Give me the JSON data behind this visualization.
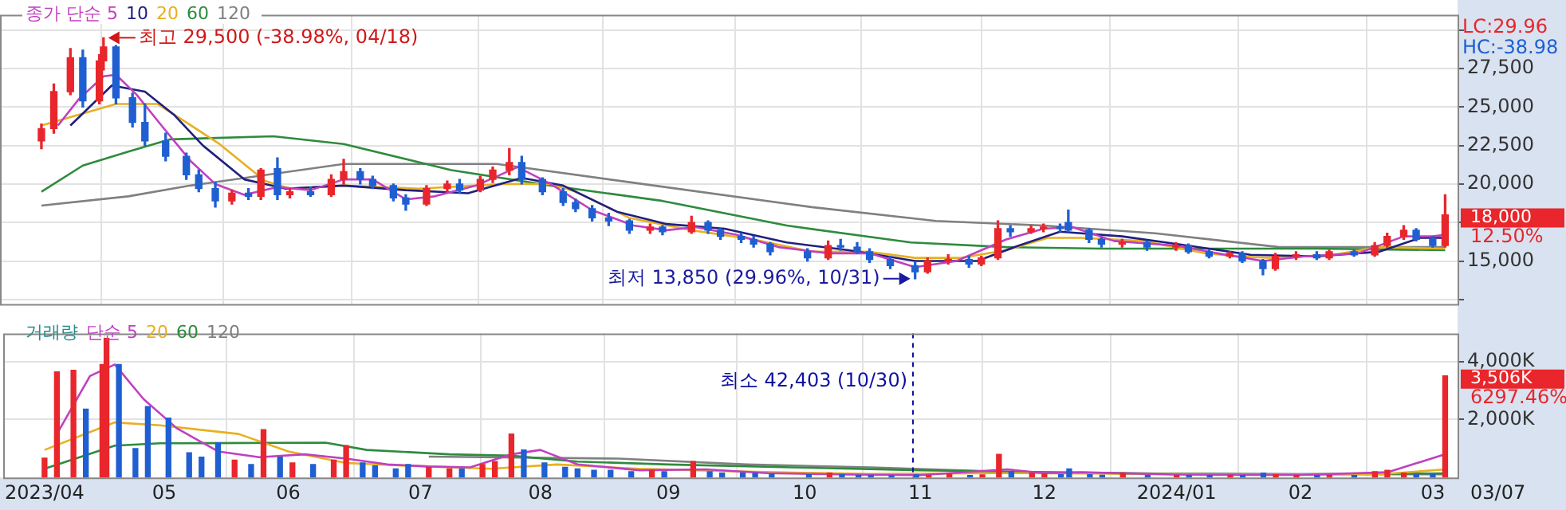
{
  "chart_data": [
    {
      "type": "candlestick",
      "tick_labels": "y",
      "grid": true,
      "x": [
        "2023-04-03",
        "2023-04-06",
        "2023-04-10",
        "2023-04-13",
        "2023-04-17",
        "2023-04-18",
        "2023-04-21",
        "2023-04-25",
        "2023-04-28",
        "2023-05-03",
        "2023-05-08",
        "2023-05-11",
        "2023-05-15",
        "2023-05-19",
        "2023-05-23",
        "2023-05-26",
        "2023-05-30",
        "2023-06-02",
        "2023-06-07",
        "2023-06-12",
        "2023-06-15",
        "2023-06-19",
        "2023-06-22",
        "2023-06-27",
        "2023-06-30",
        "2023-07-05",
        "2023-07-10",
        "2023-07-13",
        "2023-07-18",
        "2023-07-21",
        "2023-07-25",
        "2023-07-28",
        "2023-08-02",
        "2023-08-07",
        "2023-08-10",
        "2023-08-14",
        "2023-08-18",
        "2023-08-23",
        "2023-08-28",
        "2023-08-31",
        "2023-09-07",
        "2023-09-11",
        "2023-09-14",
        "2023-09-19",
        "2023-09-22",
        "2023-09-26",
        "2023-10-05",
        "2023-10-10",
        "2023-10-13",
        "2023-10-17",
        "2023-10-20",
        "2023-10-25",
        "2023-10-31",
        "2023-11-03",
        "2023-11-08",
        "2023-11-13",
        "2023-11-16",
        "2023-11-20",
        "2023-11-23",
        "2023-11-28",
        "2023-12-01",
        "2023-12-05",
        "2023-12-07",
        "2023-12-12",
        "2023-12-15",
        "2023-12-20",
        "2023-12-26",
        "2024-01-02",
        "2024-01-05",
        "2024-01-10",
        "2024-01-15",
        "2024-01-18",
        "2024-01-23",
        "2024-01-26",
        "2024-01-31",
        "2024-02-05",
        "2024-02-08",
        "2024-02-14",
        "2024-02-19",
        "2024-02-22",
        "2024-02-26",
        "2024-02-29",
        "2024-03-04",
        "2024-03-07"
      ],
      "ohlc": [
        [
          22800,
          23900,
          22300,
          23600
        ],
        [
          23600,
          26500,
          23300,
          26000
        ],
        [
          26000,
          28800,
          25800,
          28200
        ],
        [
          28200,
          28700,
          25000,
          25400
        ],
        [
          25400,
          28400,
          25200,
          28000
        ],
        [
          28000,
          29500,
          27400,
          28900
        ],
        [
          28900,
          29000,
          25200,
          25600
        ],
        [
          25600,
          25900,
          23700,
          24000
        ],
        [
          24000,
          25200,
          22500,
          22800
        ],
        [
          22800,
          23300,
          21500,
          21800
        ],
        [
          21800,
          22000,
          20300,
          20600
        ],
        [
          20600,
          20900,
          19500,
          19700
        ],
        [
          19700,
          20100,
          18500,
          18900
        ],
        [
          18900,
          19600,
          18700,
          19400
        ],
        [
          19400,
          19700,
          19000,
          19200
        ],
        [
          19200,
          21000,
          19000,
          20900
        ],
        [
          21000,
          21700,
          19000,
          19300
        ],
        [
          19300,
          19700,
          19100,
          19500
        ],
        [
          19500,
          19800,
          19200,
          19300
        ],
        [
          19300,
          20600,
          19200,
          20300
        ],
        [
          20300,
          21600,
          20000,
          20800
        ],
        [
          20800,
          21000,
          20000,
          20300
        ],
        [
          20300,
          20500,
          19700,
          19900
        ],
        [
          19900,
          20000,
          18900,
          19100
        ],
        [
          19100,
          19300,
          18300,
          18700
        ],
        [
          18700,
          19900,
          18600,
          19700
        ],
        [
          19700,
          20200,
          19500,
          20000
        ],
        [
          20000,
          20300,
          19400,
          19600
        ],
        [
          19600,
          20500,
          19500,
          20300
        ],
        [
          20300,
          21100,
          20100,
          20900
        ],
        [
          20900,
          22300,
          20600,
          21400
        ],
        [
          21400,
          21800,
          20000,
          20300
        ],
        [
          20300,
          20400,
          19300,
          19500
        ],
        [
          19500,
          19700,
          18600,
          18800
        ],
        [
          18800,
          19000,
          18200,
          18400
        ],
        [
          18400,
          18600,
          17600,
          17800
        ],
        [
          17800,
          18100,
          17300,
          17600
        ],
        [
          17600,
          17700,
          16800,
          17000
        ],
        [
          17000,
          17400,
          16800,
          17200
        ],
        [
          17200,
          17300,
          16700,
          16900
        ],
        [
          16900,
          17900,
          16800,
          17500
        ],
        [
          17500,
          17600,
          16800,
          17000
        ],
        [
          17000,
          17100,
          16400,
          16600
        ],
        [
          16600,
          16800,
          16200,
          16400
        ],
        [
          16400,
          16600,
          15900,
          16100
        ],
        [
          16100,
          16200,
          15400,
          15600
        ],
        [
          15600,
          15800,
          15000,
          15200
        ],
        [
          15200,
          16300,
          15100,
          16000
        ],
        [
          16000,
          16400,
          15700,
          15900
        ],
        [
          15900,
          16200,
          15500,
          15600
        ],
        [
          15600,
          15800,
          14900,
          15100
        ],
        [
          15100,
          15300,
          14500,
          14700
        ],
        [
          14700,
          14900,
          13850,
          14300
        ],
        [
          14300,
          15200,
          14200,
          15000
        ],
        [
          15000,
          15400,
          14800,
          15100
        ],
        [
          15100,
          15300,
          14600,
          14800
        ],
        [
          14800,
          15300,
          14700,
          15200
        ],
        [
          15200,
          17600,
          15100,
          17100
        ],
        [
          17100,
          17300,
          16600,
          16900
        ],
        [
          16900,
          17300,
          16800,
          17100
        ],
        [
          17100,
          17400,
          16900,
          17200
        ],
        [
          17200,
          17400,
          16900,
          17100
        ],
        [
          17500,
          18300,
          16900,
          17000
        ],
        [
          17000,
          17100,
          16200,
          16400
        ],
        [
          16400,
          16500,
          15900,
          16100
        ],
        [
          16100,
          16400,
          15900,
          16200
        ],
        [
          16200,
          16300,
          15700,
          15900
        ],
        [
          15900,
          16200,
          15700,
          16000
        ],
        [
          16000,
          16100,
          15500,
          15600
        ],
        [
          15600,
          15700,
          15200,
          15300
        ],
        [
          15300,
          15600,
          15200,
          15500
        ],
        [
          15500,
          15600,
          14900,
          15000
        ],
        [
          15000,
          15100,
          14100,
          14500
        ],
        [
          14500,
          15500,
          14400,
          15300
        ],
        [
          15300,
          15600,
          15100,
          15400
        ],
        [
          15400,
          15600,
          15100,
          15200
        ],
        [
          15200,
          15700,
          15100,
          15600
        ],
        [
          15600,
          15700,
          15300,
          15400
        ],
        [
          15400,
          16200,
          15300,
          16000
        ],
        [
          16000,
          16800,
          15900,
          16600
        ],
        [
          16600,
          17300,
          16400,
          17000
        ],
        [
          17000,
          17100,
          16300,
          16400
        ],
        [
          16400,
          16600,
          15900,
          16000
        ],
        [
          16000,
          19300,
          15900,
          18000
        ]
      ],
      "colors": [
        "#e8262b",
        "#e8262b",
        "#e8262b",
        "#1f5fd1",
        "#e8262b",
        "#e8262b",
        "#1f5fd1",
        "#1f5fd1",
        "#1f5fd1",
        "#1f5fd1",
        "#1f5fd1",
        "#1f5fd1",
        "#1f5fd1",
        "#e8262b",
        "#1f5fd1",
        "#e8262b",
        "#1f5fd1",
        "#e8262b",
        "#1f5fd1",
        "#e8262b",
        "#e8262b",
        "#1f5fd1",
        "#1f5fd1",
        "#1f5fd1",
        "#1f5fd1",
        "#e8262b",
        "#e8262b",
        "#1f5fd1",
        "#e8262b",
        "#e8262b",
        "#e8262b",
        "#1f5fd1",
        "#1f5fd1",
        "#1f5fd1",
        "#1f5fd1",
        "#1f5fd1",
        "#1f5fd1",
        "#1f5fd1",
        "#e8262b",
        "#1f5fd1",
        "#e8262b",
        "#1f5fd1",
        "#1f5fd1",
        "#1f5fd1",
        "#1f5fd1",
        "#1f5fd1",
        "#1f5fd1",
        "#e8262b",
        "#1f5fd1",
        "#1f5fd1",
        "#1f5fd1",
        "#1f5fd1",
        "#1f5fd1",
        "#e8262b",
        "#e8262b",
        "#1f5fd1",
        "#e8262b",
        "#e8262b",
        "#1f5fd1",
        "#e8262b",
        "#e8262b",
        "#1f5fd1",
        "#1f5fd1",
        "#1f5fd1",
        "#1f5fd1",
        "#e8262b",
        "#1f5fd1",
        "#e8262b",
        "#1f5fd1",
        "#1f5fd1",
        "#e8262b",
        "#1f5fd1",
        "#1f5fd1",
        "#e8262b",
        "#e8262b",
        "#1f5fd1",
        "#e8262b",
        "#1f5fd1",
        "#e8262b",
        "#e8262b",
        "#e8262b",
        "#1f5fd1",
        "#1f5fd1",
        "#e8262b"
      ],
      "series": [
        {
          "type": "line",
          "name": "종가 단순 5",
          "color": "#c040c0",
          "x": [
            "2023-04-07",
            "2023-04-12",
            "2023-04-18",
            "2023-04-21",
            "2023-04-26",
            "2023-05-02",
            "2023-05-09",
            "2023-05-15",
            "2023-05-22",
            "2023-05-30",
            "2023-06-07",
            "2023-06-15",
            "2023-06-22",
            "2023-06-30",
            "2023-07-07",
            "2023-07-17",
            "2023-07-27",
            "2023-08-04",
            "2023-08-14",
            "2023-08-24",
            "2023-09-01",
            "2023-09-08",
            "2023-09-18",
            "2023-09-28",
            "2023-10-10",
            "2023-10-20",
            "2023-10-31",
            "2023-11-10",
            "2023-11-22",
            "2023-12-01",
            "2023-12-08",
            "2023-12-18",
            "2024-01-02",
            "2024-01-12",
            "2024-01-23",
            "2024-02-02",
            "2024-02-15",
            "2024-02-26",
            "2024-03-04",
            "2024-03-07"
          ],
          "values": [
            23800,
            25500,
            27000,
            27100,
            25800,
            23800,
            21500,
            20000,
            19300,
            19800,
            19600,
            20300,
            20300,
            19000,
            19200,
            19900,
            21100,
            20000,
            18300,
            17300,
            17000,
            17200,
            16700,
            15900,
            15500,
            15500,
            14600,
            15000,
            16400,
            17100,
            17200,
            16300,
            16000,
            15500,
            15000,
            15300,
            15500,
            16600,
            16600,
            16700
          ]
        },
        {
          "type": "line",
          "name": "10",
          "color": "#202080",
          "x": [
            "2023-04-10",
            "2023-04-20",
            "2023-04-28",
            "2023-05-05",
            "2023-05-12",
            "2023-05-22",
            "2023-06-01",
            "2023-06-15",
            "2023-06-30",
            "2023-07-15",
            "2023-07-28",
            "2023-08-07",
            "2023-08-20",
            "2023-09-01",
            "2023-09-15",
            "2023-09-30",
            "2023-10-15",
            "2023-10-31",
            "2023-11-15",
            "2023-11-25",
            "2023-12-05",
            "2023-12-20",
            "2024-01-05",
            "2024-01-20",
            "2024-02-05",
            "2024-02-20",
            "2024-03-01",
            "2024-03-07"
          ],
          "values": [
            23800,
            26400,
            26000,
            24500,
            22500,
            20300,
            19700,
            19900,
            19600,
            19400,
            20400,
            19900,
            18200,
            17400,
            17100,
            16200,
            15700,
            15000,
            15000,
            16000,
            16900,
            16600,
            16000,
            15400,
            15300,
            15600,
            16500,
            16500
          ]
        },
        {
          "type": "line",
          "name": "20",
          "color": "#e8b020",
          "x": [
            "2023-04-03",
            "2023-04-21",
            "2023-05-01",
            "2023-05-08",
            "2023-05-16",
            "2023-05-27",
            "2023-06-02",
            "2023-06-15",
            "2023-07-03",
            "2023-07-24",
            "2023-08-04",
            "2023-08-10",
            "2023-08-23",
            "2023-09-07",
            "2023-09-22",
            "2023-10-06",
            "2023-10-20",
            "2023-10-31",
            "2023-11-11",
            "2023-11-22",
            "2023-12-02",
            "2023-12-10",
            "2023-12-25",
            "2024-01-09",
            "2024-01-17",
            "2024-01-25",
            "2024-02-09",
            "2024-02-20",
            "2024-03-07"
          ],
          "values": [
            23800,
            25200,
            25200,
            24000,
            22600,
            20200,
            19700,
            19900,
            19700,
            20000,
            20000,
            19500,
            17800,
            17000,
            16400,
            15600,
            15600,
            15200,
            15200,
            15700,
            16500,
            16500,
            16300,
            15500,
            15300,
            15200,
            15400,
            15900,
            15800
          ]
        },
        {
          "type": "line",
          "name": "60",
          "color": "#2e8b3e",
          "x": [
            "2023-04-03",
            "2023-04-13",
            "2023-04-24",
            "2023-05-04",
            "2023-05-29",
            "2023-06-15",
            "2023-07-11",
            "2023-08-04",
            "2023-08-31",
            "2023-09-30",
            "2023-10-30",
            "2023-11-22",
            "2023-12-15",
            "2024-01-13",
            "2024-02-05",
            "2024-03-07"
          ],
          "values": [
            19500,
            21200,
            22100,
            22900,
            23100,
            22600,
            20900,
            19900,
            18900,
            17300,
            16200,
            15900,
            15800,
            15800,
            15800,
            15700
          ]
        },
        {
          "type": "line",
          "name": "120",
          "color": "#808080",
          "x": [
            "2023-04-03",
            "2023-04-24",
            "2023-05-09",
            "2023-06-15",
            "2023-07-22",
            "2023-08-29",
            "2023-10-06",
            "2023-11-05",
            "2023-12-01",
            "2023-12-28",
            "2024-01-27",
            "2024-03-07"
          ],
          "values": [
            18600,
            19200,
            19900,
            21300,
            21300,
            19900,
            18500,
            17600,
            17300,
            16800,
            15900,
            15900
          ]
        }
      ],
      "xlim": [
        "2023-03-24",
        "2024-03-10"
      ],
      "xticks": [
        {
          "value": "2023-04-03",
          "label": null
        },
        {
          "value": "2023-05-02",
          "label": null
        },
        {
          "value": "2023-06-01",
          "label": null
        },
        {
          "value": "2023-07-03",
          "label": null
        },
        {
          "value": "2023-08-01",
          "label": null
        },
        {
          "value": "2023-09-01",
          "label": null
        },
        {
          "value": "2023-10-04",
          "label": null
        },
        {
          "value": "2023-11-01",
          "label": null
        },
        {
          "value": "2023-12-01",
          "label": null
        },
        {
          "value": "2024-01-02",
          "label": null
        },
        {
          "value": "2024-02-01",
          "label": null
        },
        {
          "value": "2024-03-04",
          "label": null
        }
      ],
      "ylim": [
        12200,
        31000
      ],
      "yticks": [
        {
          "value": 12500,
          "label": null
        },
        {
          "value": 15000,
          "label": "15,000"
        },
        {
          "value": 17500,
          "label": null
        },
        {
          "value": 20000,
          "label": "20,000"
        },
        {
          "value": 22500,
          "label": "22,500"
        },
        {
          "value": 25000,
          "label": "25,000"
        },
        {
          "value": 27500,
          "label": "27,500"
        },
        {
          "value": 30000,
          "label": null
        }
      ],
      "annotations": [
        {
          "text": "최고 29,500 (-38.98%, 04/18)",
          "x": "2023-04-18",
          "y": 29500
        },
        {
          "text": "최저 13,850 (29.96%, 10/31)",
          "x": "2023-10-31",
          "y": 13850
        },
        "LC:29.96",
        "HC:-38.98",
        {
          "text": "18,000",
          "x": "2024-03-07",
          "y": 18000
        },
        "12.50%"
      ]
    },
    {
      "type": "bar",
      "title": "거래량",
      "grid": true,
      "x": [
        "2023-04-03",
        "2023-04-06",
        "2023-04-10",
        "2023-04-13",
        "2023-04-17",
        "2023-04-18",
        "2023-04-21",
        "2023-04-25",
        "2023-04-28",
        "2023-05-03",
        "2023-05-08",
        "2023-05-11",
        "2023-05-15",
        "2023-05-19",
        "2023-05-23",
        "2023-05-26",
        "2023-05-30",
        "2023-06-02",
        "2023-06-07",
        "2023-06-12",
        "2023-06-15",
        "2023-06-19",
        "2023-06-22",
        "2023-06-27",
        "2023-06-30",
        "2023-07-05",
        "2023-07-10",
        "2023-07-13",
        "2023-07-18",
        "2023-07-21",
        "2023-07-25",
        "2023-07-28",
        "2023-08-02",
        "2023-08-07",
        "2023-08-10",
        "2023-08-14",
        "2023-08-18",
        "2023-08-23",
        "2023-08-28",
        "2023-08-31",
        "2023-09-07",
        "2023-09-11",
        "2023-09-14",
        "2023-09-19",
        "2023-09-22",
        "2023-09-26",
        "2023-10-05",
        "2023-10-10",
        "2023-10-13",
        "2023-10-17",
        "2023-10-20",
        "2023-10-25",
        "2023-10-31",
        "2023-11-03",
        "2023-11-08",
        "2023-11-13",
        "2023-11-16",
        "2023-11-20",
        "2023-11-23",
        "2023-11-28",
        "2023-12-01",
        "2023-12-05",
        "2023-12-07",
        "2023-12-12",
        "2023-12-15",
        "2023-12-20",
        "2023-12-26",
        "2024-01-02",
        "2024-01-05",
        "2024-01-10",
        "2024-01-15",
        "2024-01-18",
        "2024-01-23",
        "2024-01-26",
        "2024-01-31",
        "2024-02-05",
        "2024-02-08",
        "2024-02-14",
        "2024-02-19",
        "2024-02-22",
        "2024-02-26",
        "2024-02-29",
        "2024-03-04",
        "2024-03-07"
      ],
      "values": [
        670,
        3640,
        3700,
        2360,
        3900,
        4800,
        3900,
        1000,
        2450,
        2050,
        850,
        700,
        1200,
        600,
        450,
        1650,
        700,
        500,
        450,
        600,
        1100,
        500,
        400,
        300,
        450,
        350,
        300,
        300,
        450,
        550,
        1500,
        950,
        500,
        350,
        300,
        250,
        250,
        200,
        250,
        200,
        550,
        200,
        150,
        150,
        150,
        120,
        100,
        150,
        100,
        80,
        80,
        60,
        90,
        80,
        120,
        70,
        90,
        800,
        200,
        150,
        120,
        100,
        300,
        100,
        80,
        150,
        70,
        80,
        70,
        70,
        80,
        70,
        150,
        100,
        80,
        70,
        80,
        70,
        200,
        250,
        150,
        100,
        100,
        3506
      ],
      "colors": [
        "#e8262b",
        "#e8262b",
        "#e8262b",
        "#1f5fd1",
        "#e8262b",
        "#e8262b",
        "#1f5fd1",
        "#1f5fd1",
        "#1f5fd1",
        "#1f5fd1",
        "#1f5fd1",
        "#1f5fd1",
        "#1f5fd1",
        "#e8262b",
        "#1f5fd1",
        "#e8262b",
        "#1f5fd1",
        "#e8262b",
        "#1f5fd1",
        "#e8262b",
        "#e8262b",
        "#1f5fd1",
        "#1f5fd1",
        "#1f5fd1",
        "#1f5fd1",
        "#e8262b",
        "#e8262b",
        "#1f5fd1",
        "#e8262b",
        "#e8262b",
        "#e8262b",
        "#1f5fd1",
        "#1f5fd1",
        "#1f5fd1",
        "#1f5fd1",
        "#1f5fd1",
        "#1f5fd1",
        "#1f5fd1",
        "#e8262b",
        "#1f5fd1",
        "#e8262b",
        "#1f5fd1",
        "#1f5fd1",
        "#1f5fd1",
        "#1f5fd1",
        "#1f5fd1",
        "#1f5fd1",
        "#e8262b",
        "#1f5fd1",
        "#1f5fd1",
        "#1f5fd1",
        "#1f5fd1",
        "#1f5fd1",
        "#e8262b",
        "#e8262b",
        "#1f5fd1",
        "#e8262b",
        "#e8262b",
        "#1f5fd1",
        "#e8262b",
        "#e8262b",
        "#1f5fd1",
        "#1f5fd1",
        "#1f5fd1",
        "#1f5fd1",
        "#e8262b",
        "#1f5fd1",
        "#e8262b",
        "#1f5fd1",
        "#1f5fd1",
        "#e8262b",
        "#1f5fd1",
        "#1f5fd1",
        "#e8262b",
        "#e8262b",
        "#1f5fd1",
        "#e8262b",
        "#1f5fd1",
        "#e8262b",
        "#e8262b",
        "#e8262b",
        "#1f5fd1",
        "#1f5fd1",
        "#e8262b"
      ],
      "series": [
        {
          "type": "line",
          "name": "단순 5",
          "color": "#c040c0",
          "x": [
            "2023-04-06",
            "2023-04-14",
            "2023-04-20",
            "2023-04-27",
            "2023-05-05",
            "2023-05-15",
            "2023-05-25",
            "2023-06-05",
            "2023-06-15",
            "2023-06-25",
            "2023-07-05",
            "2023-07-15",
            "2023-07-25",
            "2023-08-01",
            "2023-08-10",
            "2023-08-25",
            "2023-09-10",
            "2023-09-25",
            "2023-10-15",
            "2023-11-01",
            "2023-11-22",
            "2023-12-01",
            "2023-12-10",
            "2024-01-01",
            "2024-02-01",
            "2024-02-22",
            "2024-03-07"
          ],
          "values": [
            1500,
            3500,
            3900,
            2700,
            1700,
            900,
            700,
            800,
            650,
            450,
            380,
            350,
            800,
            950,
            450,
            250,
            280,
            150,
            100,
            80,
            280,
            150,
            180,
            100,
            90,
            180,
            800
          ]
        },
        {
          "type": "line",
          "name": "20",
          "color": "#e8b020",
          "x": [
            "2023-04-03",
            "2023-04-20",
            "2023-05-01",
            "2023-05-20",
            "2023-06-01",
            "2023-06-15",
            "2023-07-01",
            "2023-07-20",
            "2023-08-05",
            "2023-08-25",
            "2023-09-20",
            "2023-10-20",
            "2023-11-20",
            "2023-12-20",
            "2024-01-20",
            "2024-02-20",
            "2024-03-07"
          ],
          "values": [
            950,
            1900,
            1800,
            1500,
            900,
            500,
            400,
            300,
            450,
            300,
            200,
            120,
            150,
            130,
            100,
            110,
            280
          ]
        },
        {
          "type": "line",
          "name": "60",
          "color": "#2e8b3e",
          "x": [
            "2023-04-03",
            "2023-04-20",
            "2023-05-01",
            "2023-06-10",
            "2023-06-20",
            "2023-07-10",
            "2023-07-25",
            "2023-08-10",
            "2023-09-01",
            "2023-10-01",
            "2023-11-01",
            "2023-12-01",
            "2024-01-01",
            "2024-02-01",
            "2024-03-07"
          ],
          "values": [
            300,
            1100,
            1180,
            1200,
            950,
            800,
            750,
            550,
            450,
            350,
            250,
            180,
            130,
            110,
            140
          ]
        },
        {
          "type": "line",
          "name": "120",
          "color": "#808080",
          "x": [
            "2023-07-05",
            "2023-08-20",
            "2023-09-20",
            "2023-10-20",
            "2023-11-20",
            "2023-12-20",
            "2024-01-20",
            "2024-03-07"
          ],
          "values": [
            720,
            650,
            450,
            350,
            200,
            140,
            120,
            110
          ]
        }
      ],
      "xlim": [
        "2023-03-24",
        "2024-03-10"
      ],
      "xticks": [
        {
          "value": "2023-04-03",
          "label": "2023/04"
        },
        {
          "value": "2023-05-02",
          "label": "05"
        },
        {
          "value": "2023-06-01",
          "label": "06"
        },
        {
          "value": "2023-07-03",
          "label": "07"
        },
        {
          "value": "2023-08-01",
          "label": "08"
        },
        {
          "value": "2023-09-01",
          "label": "09"
        },
        {
          "value": "2023-10-04",
          "label": "10"
        },
        {
          "value": "2023-11-01",
          "label": "11"
        },
        {
          "value": "2023-12-01",
          "label": "12"
        },
        {
          "value": "2024-01-02",
          "label": "2024/01"
        },
        {
          "value": "2024-02-01",
          "label": "02"
        },
        {
          "value": "2024-03-04",
          "label": "03"
        }
      ],
      "ylim": [
        0,
        4970
      ],
      "yticks": [
        {
          "value": 2000,
          "label": "2,000K"
        },
        {
          "value": 4000,
          "label": "4,000K"
        }
      ],
      "ref_lines": [
        {
          "axis": "x",
          "value": "2023-10-30",
          "label": "최소 42,403 (10/30)",
          "color": "#1010a0",
          "line_style": "dashed"
        }
      ],
      "annotations": [
        {
          "text": "3,506K",
          "x": "2024-03-07",
          "y": 3506
        },
        "6297.46%",
        "03/07"
      ]
    }
  ]
}
